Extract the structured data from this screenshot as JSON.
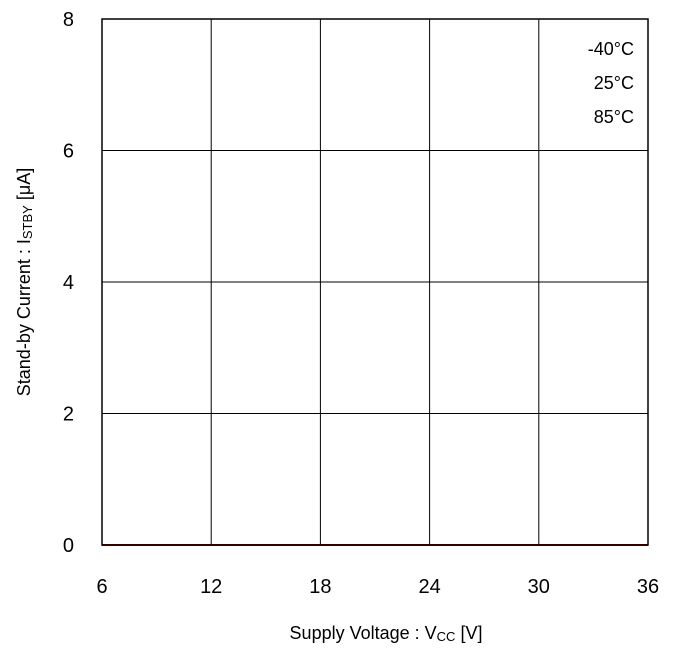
{
  "chart_data": {
    "type": "line",
    "xlabel": {
      "main": "Supply Voltage : V",
      "sub": "CC",
      "unit": " [V]"
    },
    "ylabel": {
      "main": "Stand-by Current : I",
      "sub": "STBY",
      "unit": " [μA]"
    },
    "xlim": [
      6,
      36
    ],
    "ylim": [
      0,
      8
    ],
    "xticks": [
      6,
      12,
      18,
      24,
      30,
      36
    ],
    "yticks": [
      0,
      2,
      4,
      6,
      8
    ],
    "grid": true,
    "legend_position": "top-right",
    "series": [
      {
        "name": "-40°C",
        "color": "#000000",
        "x": [
          6,
          12,
          18,
          24,
          30,
          36
        ],
        "y": [
          0,
          0,
          0,
          0,
          0,
          0
        ]
      },
      {
        "name": "25°C",
        "color": "#0000cc",
        "x": [
          6,
          12,
          18,
          24,
          30,
          36
        ],
        "y": [
          0,
          0,
          0,
          0,
          0,
          0
        ]
      },
      {
        "name": "85°C",
        "color": "#cc0000",
        "x": [
          6,
          12,
          18,
          24,
          30,
          36
        ],
        "y": [
          0,
          0,
          0,
          0,
          0,
          0
        ]
      }
    ]
  }
}
